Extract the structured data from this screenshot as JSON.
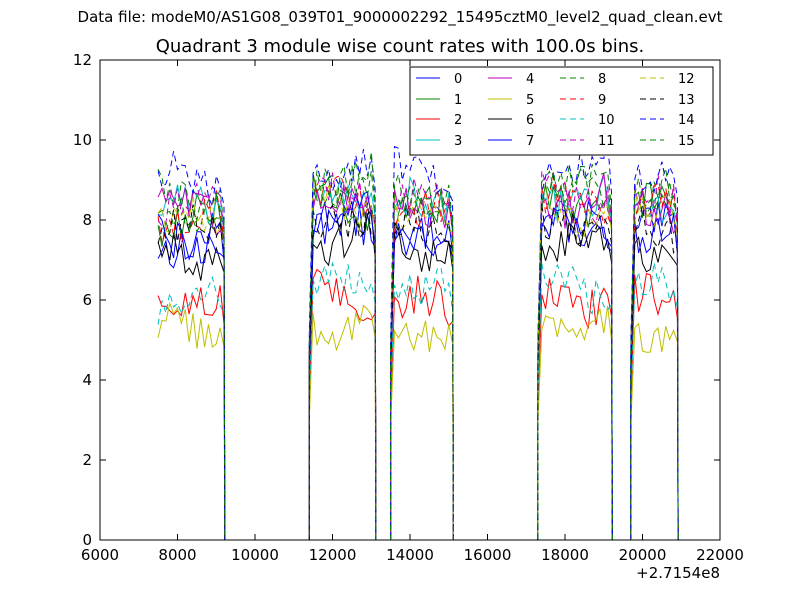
{
  "figure": {
    "suptitle": "Data file: modeM0/AS1G08_039T01_9000002292_15495cztM0_level2_quad_clean.evt",
    "title": "Quadrant 3 module wise count rates with 100.0s bins."
  },
  "chart_data": {
    "type": "line",
    "title": "Quadrant 3 module wise count rates with 100.0s bins.",
    "xlabel": "",
    "ylabel": "",
    "x_offset_label": "+2.7154e8",
    "xlim": [
      6000,
      22000
    ],
    "ylim": [
      0,
      12
    ],
    "x_ticks": [
      6000,
      8000,
      10000,
      12000,
      14000,
      16000,
      18000,
      20000,
      22000
    ],
    "y_ticks": [
      0,
      2,
      4,
      6,
      8,
      10,
      12
    ],
    "legend": {
      "position": "top-right",
      "columns": 4
    },
    "grid": false,
    "segments": [
      [
        7500,
        9200
      ],
      [
        11400,
        13100
      ],
      [
        13500,
        15100
      ],
      [
        17300,
        19200
      ],
      [
        19700,
        20900
      ]
    ],
    "gaps": [
      [
        9200,
        11400
      ],
      [
        13100,
        13500
      ],
      [
        15100,
        17300
      ],
      [
        19200,
        19700
      ]
    ],
    "series": [
      {
        "name": "0",
        "color": "#0000ff",
        "dash": "solid",
        "level": 7.5
      },
      {
        "name": "1",
        "color": "#008000",
        "dash": "solid",
        "level": 8.0
      },
      {
        "name": "2",
        "color": "#ff0000",
        "dash": "solid",
        "level": 5.8
      },
      {
        "name": "3",
        "color": "#00bfbf",
        "dash": "solid",
        "level": 8.3
      },
      {
        "name": "4",
        "color": "#bf00bf",
        "dash": "solid",
        "level": 8.2
      },
      {
        "name": "5",
        "color": "#bfbf00",
        "dash": "solid",
        "level": 5.2
      },
      {
        "name": "6",
        "color": "#000000",
        "dash": "solid",
        "level": 7.2
      },
      {
        "name": "7",
        "color": "#0000ff",
        "dash": "solid",
        "level": 7.6
      },
      {
        "name": "8",
        "color": "#008000",
        "dash": "dashed",
        "level": 8.4
      },
      {
        "name": "9",
        "color": "#ff0000",
        "dash": "dashed",
        "level": 8.1
      },
      {
        "name": "10",
        "color": "#00bfbf",
        "dash": "dashed",
        "level": 6.1
      },
      {
        "name": "11",
        "color": "#bf00bf",
        "dash": "dashed",
        "level": 8.3
      },
      {
        "name": "12",
        "color": "#bfbf00",
        "dash": "dashed",
        "level": 8.0
      },
      {
        "name": "13",
        "color": "#000000",
        "dash": "dashed",
        "level": 7.7
      },
      {
        "name": "14",
        "color": "#0000ff",
        "dash": "dashed",
        "level": 9.0
      },
      {
        "name": "15",
        "color": "#008000",
        "dash": "dashed",
        "level": 8.6
      }
    ]
  }
}
